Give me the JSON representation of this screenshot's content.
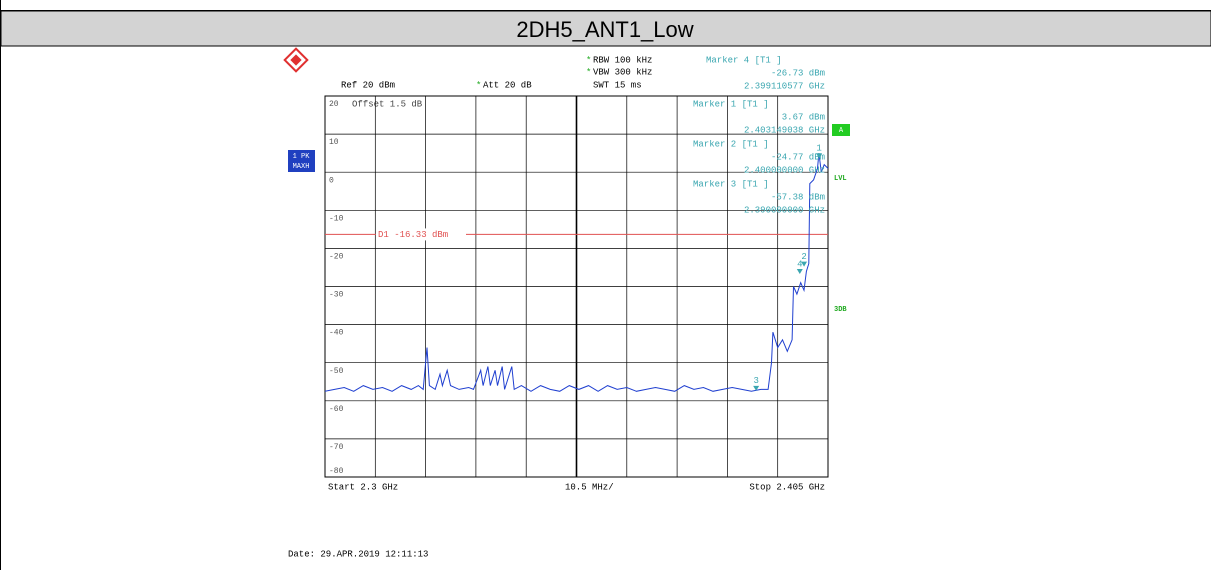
{
  "header": {
    "title": "2DH5_ANT1_Low"
  },
  "chart_data": {
    "type": "line",
    "settings": {
      "ref": "Ref  20 dBm",
      "att": "Att  20 dB",
      "rbw": "RBW 100 kHz",
      "vbw": "VBW 300 kHz",
      "swt": "SWT 15 ms",
      "offset": "Offset  1.5 dB",
      "trace_mode": "1 PK",
      "trace_det": "MAXH",
      "channel": "A",
      "lvl": "LVL",
      "db3": "3DB",
      "start": "Start 2.3 GHz",
      "span_div": "10.5 MHz/",
      "stop": "Stop 2.405 GHz",
      "date": "Date: 29.APR.2019  12:11:13"
    },
    "xlim": [
      2.3,
      2.405
    ],
    "ylim": [
      -80,
      20
    ],
    "yticks": [
      20,
      10,
      0,
      -10,
      -20,
      -30,
      -40,
      -50,
      -60,
      -70,
      -80
    ],
    "grid": true,
    "display_line": {
      "label": "D1 -16.33 dBm",
      "value": -16.33,
      "color": "#e05050"
    },
    "series": [
      {
        "name": "1 PK MAXH",
        "color": "#1f3fd0",
        "x": [
          2.3,
          2.302,
          2.304,
          2.306,
          2.308,
          2.31,
          2.312,
          2.314,
          2.316,
          2.318,
          2.3195,
          2.3205,
          2.3213,
          2.3218,
          2.323,
          2.324,
          2.3245,
          2.3255,
          2.3262,
          2.328,
          2.33,
          2.331,
          2.3325,
          2.333,
          2.334,
          2.3345,
          2.3355,
          2.336,
          2.337,
          2.3375,
          2.339,
          2.3395,
          2.341,
          2.343,
          2.345,
          2.347,
          2.349,
          2.351,
          2.353,
          2.355,
          2.357,
          2.359,
          2.361,
          2.363,
          2.365,
          2.367,
          2.369,
          2.371,
          2.373,
          2.375,
          2.377,
          2.379,
          2.381,
          2.383,
          2.385,
          2.387,
          2.389,
          2.391,
          2.3925,
          2.3932,
          2.3935,
          2.3945,
          2.3955,
          2.3965,
          2.3975,
          2.3978,
          2.3985,
          2.3993,
          2.4,
          2.4005,
          2.401,
          2.4012,
          2.402,
          2.4028,
          2.4031,
          2.4036,
          2.4042,
          2.405
        ],
        "values": [
          -57.5,
          -57,
          -56.5,
          -57.5,
          -56,
          -57,
          -56.5,
          -57.5,
          -56,
          -57,
          -56,
          -57,
          -46,
          -56,
          -57,
          -53,
          -56,
          -52,
          -56,
          -57,
          -56.5,
          -57,
          -52,
          -56,
          -51,
          -56,
          -52,
          -56,
          -51,
          -57,
          -51,
          -57,
          -56,
          -57.5,
          -56,
          -57,
          -57.5,
          -56,
          -57,
          -56,
          -57.5,
          -56,
          -57,
          -56.5,
          -57.5,
          -57,
          -56.5,
          -57,
          -57.5,
          -56,
          -57,
          -56.5,
          -57.5,
          -57,
          -56.5,
          -57,
          -57.5,
          -57,
          -57,
          -50,
          -42,
          -46,
          -44,
          -47,
          -44,
          -30,
          -32,
          -29,
          -31,
          -26,
          -24,
          -3,
          -2,
          1,
          5,
          0,
          2,
          1
        ]
      }
    ],
    "markers": [
      {
        "id": "4",
        "name": "Marker 4 [T1 ]",
        "value_label": "-26.73 dBm",
        "x_label": "2.399110577 GHz",
        "x": 2.399110577,
        "y": -26.73
      },
      {
        "id": "1",
        "name": "Marker 1 [T1 ]",
        "value_label": "3.67 dBm",
        "x_label": "2.403149038 GHz",
        "x": 2.403149038,
        "y": 3.67
      },
      {
        "id": "2",
        "name": "Marker 2 [T1 ]",
        "value_label": "-24.77 dBm",
        "x_label": "2.400000000 GHz",
        "x": 2.4,
        "y": -24.77
      },
      {
        "id": "3",
        "name": "Marker 3 [T1 ]",
        "value_label": "-57.38 dBm",
        "x_label": "2.390000000 GHz",
        "x": 2.39,
        "y": -57.38
      }
    ]
  }
}
